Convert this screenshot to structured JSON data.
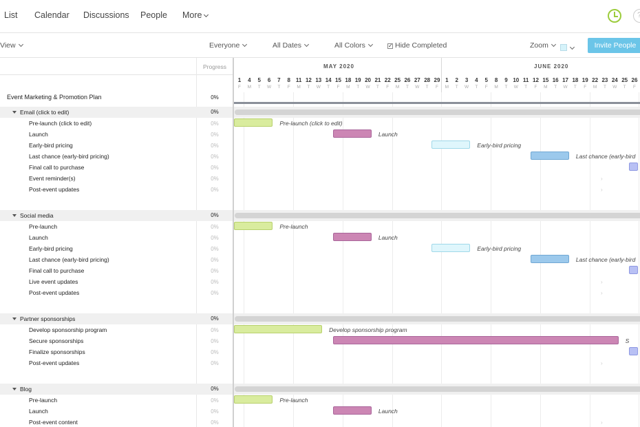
{
  "nav": {
    "items": [
      "List",
      "Calendar",
      "Discussions",
      "People",
      "More"
    ]
  },
  "toolbar": {
    "view_label": "View",
    "everyone_label": "Everyone",
    "dates_label": "All Dates",
    "colors_label": "All Colors",
    "hide_completed_label": "Hide Completed",
    "zoom_label": "Zoom",
    "invite_label": "Invite People"
  },
  "gantt": {
    "progress_header": "Progress",
    "months": [
      {
        "label": "MAY 2020"
      },
      {
        "label": "JUNE 2020"
      }
    ],
    "may_days": [
      {
        "n": "1",
        "d": "F"
      },
      {
        "n": "4",
        "d": "M"
      },
      {
        "n": "5",
        "d": "T"
      },
      {
        "n": "6",
        "d": "W"
      },
      {
        "n": "7",
        "d": "T"
      },
      {
        "n": "8",
        "d": "F"
      },
      {
        "n": "11",
        "d": "M"
      },
      {
        "n": "12",
        "d": "T"
      },
      {
        "n": "13",
        "d": "W"
      },
      {
        "n": "14",
        "d": "T"
      },
      {
        "n": "15",
        "d": "F"
      },
      {
        "n": "18",
        "d": "M"
      },
      {
        "n": "19",
        "d": "T"
      },
      {
        "n": "20",
        "d": "W"
      },
      {
        "n": "21",
        "d": "T"
      },
      {
        "n": "22",
        "d": "F"
      },
      {
        "n": "25",
        "d": "M"
      },
      {
        "n": "26",
        "d": "T"
      },
      {
        "n": "27",
        "d": "W"
      },
      {
        "n": "28",
        "d": "T"
      },
      {
        "n": "29",
        "d": "F"
      }
    ],
    "june_days": [
      {
        "n": "1",
        "d": "M"
      },
      {
        "n": "2",
        "d": "T"
      },
      {
        "n": "3",
        "d": "W"
      },
      {
        "n": "4",
        "d": "T"
      },
      {
        "n": "5",
        "d": "F"
      },
      {
        "n": "8",
        "d": "M"
      },
      {
        "n": "9",
        "d": "T"
      },
      {
        "n": "10",
        "d": "W"
      },
      {
        "n": "11",
        "d": "T"
      },
      {
        "n": "12",
        "d": "F"
      },
      {
        "n": "15",
        "d": "M"
      },
      {
        "n": "16",
        "d": "T"
      },
      {
        "n": "17",
        "d": "W"
      },
      {
        "n": "18",
        "d": "T"
      },
      {
        "n": "19",
        "d": "F"
      },
      {
        "n": "22",
        "d": "M"
      },
      {
        "n": "23",
        "d": "T"
      },
      {
        "n": "24",
        "d": "W"
      },
      {
        "n": "25",
        "d": "T"
      },
      {
        "n": "26",
        "d": "F"
      }
    ],
    "project": {
      "label": "Event Marketing & Promotion Plan",
      "pct": "0%"
    },
    "groups": [
      {
        "label": "Email (click to edit)",
        "pct": "0%",
        "tasks": [
          {
            "label": "Pre-launch (click to edit)",
            "pct": "0%",
            "bar": "green",
            "bar_label": "Pre-launch (click to edit)",
            "start": "May 1",
            "end": "May 6"
          },
          {
            "label": "Launch",
            "pct": "0%",
            "bar": "pink",
            "bar_label": "Launch",
            "start": "May 15",
            "end": "May 20"
          },
          {
            "label": "Early-bird pricing",
            "pct": "0%",
            "bar": "cyan",
            "bar_label": "Early-bird pricing",
            "start": "May 29",
            "end": "June 3"
          },
          {
            "label": "Last chance (early-bird pricing)",
            "pct": "0%",
            "bar": "blue",
            "bar_label": "Last chance (early-bird",
            "start": "June 12",
            "end": "June 17"
          },
          {
            "label": "Final call to purchase",
            "pct": "0%",
            "bar": "lavender",
            "bar_label": "",
            "start": "June 26",
            "end": "June 26"
          },
          {
            "label": "Event reminder(s)",
            "pct": "0%"
          },
          {
            "label": "Post-event updates",
            "pct": "0%"
          }
        ]
      },
      {
        "label": "Social media",
        "pct": "0%",
        "tasks": [
          {
            "label": "Pre-launch",
            "pct": "0%",
            "bar": "green",
            "bar_label": "Pre-launch",
            "start": "May 1",
            "end": "May 6"
          },
          {
            "label": "Launch",
            "pct": "0%",
            "bar": "pink",
            "bar_label": "Launch",
            "start": "May 15",
            "end": "May 20"
          },
          {
            "label": "Early-bird pricing",
            "pct": "0%",
            "bar": "cyan",
            "bar_label": "Early-bird pricing",
            "start": "May 29",
            "end": "June 3"
          },
          {
            "label": "Last chance (early-bird pricing)",
            "pct": "0%",
            "bar": "blue",
            "bar_label": "Last chance (early-bird",
            "start": "June 12",
            "end": "June 17"
          },
          {
            "label": "Final call to purchase",
            "pct": "0%",
            "bar": "lavender",
            "bar_label": "",
            "start": "June 26",
            "end": "June 26"
          },
          {
            "label": "Live event updates",
            "pct": "0%"
          },
          {
            "label": "Post-event updates",
            "pct": "0%"
          }
        ]
      },
      {
        "label": "Partner sponsorships",
        "pct": "0%",
        "tasks": [
          {
            "label": "Develop sponsorship program",
            "pct": "0%",
            "bar": "green",
            "bar_label": "Develop sponsorship program",
            "start": "May 1",
            "end": "May 13"
          },
          {
            "label": "Secure sponsorships",
            "pct": "0%",
            "bar": "pink",
            "bar_label": "S",
            "start": "May 15",
            "end": "June 24"
          },
          {
            "label": "Finalize sponsorships",
            "pct": "0%",
            "bar": "lavender",
            "bar_label": "",
            "start": "June 26",
            "end": "June 26"
          },
          {
            "label": "Post-event updates",
            "pct": "0%"
          }
        ]
      },
      {
        "label": "Blog",
        "pct": "0%",
        "tasks": [
          {
            "label": "Pre-launch",
            "pct": "0%",
            "bar": "green",
            "bar_label": "Pre-launch",
            "start": "May 1",
            "end": "May 6"
          },
          {
            "label": "Launch",
            "pct": "0%",
            "bar": "pink",
            "bar_label": "Launch",
            "start": "May 15",
            "end": "May 20"
          },
          {
            "label": "Post-event content",
            "pct": "0%"
          }
        ]
      }
    ]
  }
}
